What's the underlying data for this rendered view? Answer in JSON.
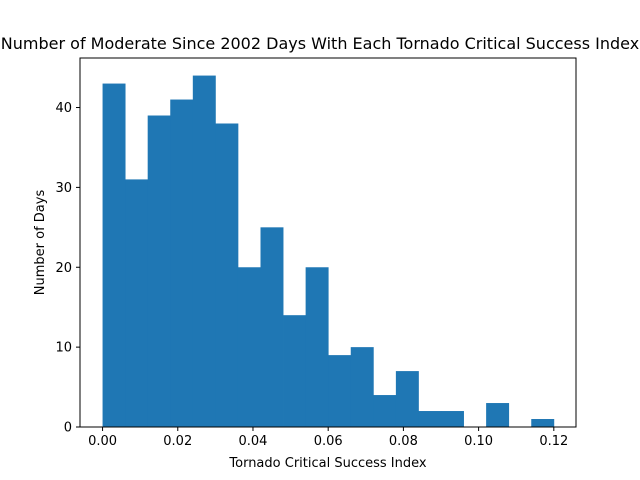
{
  "chart_data": {
    "type": "bar",
    "title": "Number of Moderate Since 2002 Days With Each Tornado Critical Success Index",
    "xlabel": "Tornado Critical Success Index",
    "ylabel": "Number of Days",
    "bin_start": 0.0,
    "bin_width": 0.006,
    "values": [
      43,
      31,
      39,
      41,
      44,
      38,
      20,
      25,
      14,
      20,
      9,
      10,
      4,
      7,
      2,
      2,
      0,
      3,
      0,
      1
    ],
    "xlim": [
      -0.006,
      0.1259
    ],
    "ylim": [
      0,
      46.2
    ],
    "x_ticks": [
      0.0,
      0.02,
      0.04,
      0.06,
      0.08,
      0.1,
      0.12
    ],
    "x_tick_labels": [
      "0.00",
      "0.02",
      "0.04",
      "0.06",
      "0.08",
      "0.10",
      "0.12"
    ],
    "y_ticks": [
      0,
      10,
      20,
      30,
      40
    ],
    "y_tick_labels": [
      "0",
      "10",
      "20",
      "30",
      "40"
    ],
    "bar_color": "#1f77b4",
    "grid": false
  }
}
